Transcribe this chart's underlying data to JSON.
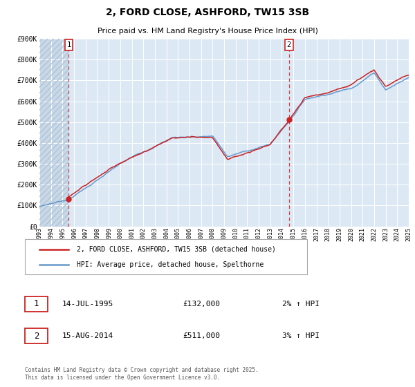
{
  "title_line1": "2, FORD CLOSE, ASHFORD, TW15 3SB",
  "title_line2": "Price paid vs. HM Land Registry's House Price Index (HPI)",
  "ylim": [
    0,
    900000
  ],
  "yticks": [
    0,
    100000,
    200000,
    300000,
    400000,
    500000,
    600000,
    700000,
    800000,
    900000
  ],
  "ytick_labels": [
    "£0",
    "£100K",
    "£200K",
    "£300K",
    "£400K",
    "£500K",
    "£600K",
    "£700K",
    "£800K",
    "£900K"
  ],
  "year_start": 1993,
  "year_end": 2025,
  "hpi_color": "#6699cc",
  "price_color": "#cc2222",
  "point1_year": 1995.54,
  "point1_value": 132000,
  "point2_year": 2014.62,
  "point2_value": 511000,
  "vline1_year": 1995.54,
  "vline2_year": 2014.62,
  "legend_line1": "2, FORD CLOSE, ASHFORD, TW15 3SB (detached house)",
  "legend_line2": "HPI: Average price, detached house, Spelthorne",
  "annotation1_date": "14-JUL-1995",
  "annotation1_price": "£132,000",
  "annotation1_hpi": "2% ↑ HPI",
  "annotation2_date": "15-AUG-2014",
  "annotation2_price": "£511,000",
  "annotation2_hpi": "3% ↑ HPI",
  "footnote": "Contains HM Land Registry data © Crown copyright and database right 2025.\nThis data is licensed under the Open Government Licence v3.0.",
  "plot_bg": "#dce9f5",
  "grid_color": "#ffffff",
  "fig_bg": "#ffffff"
}
